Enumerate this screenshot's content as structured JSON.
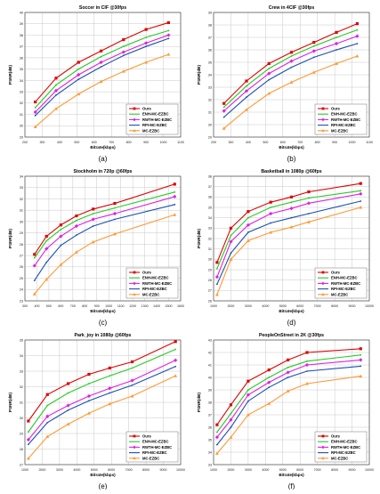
{
  "legend_labels": [
    "Ours",
    "ENH-MC-EZBC",
    "RWTH-MC-EZBC",
    "RPI-MC-EZBC",
    "MC-EZBC"
  ],
  "colors": {
    "Ours": "#e00000",
    "ENH-MC-EZBC": "#22cc22",
    "RWTH-MC-EZBC": "#e020e0",
    "RPI-MC-EZBC": "#1a4fb0",
    "MC-EZBC": "#ff9933"
  },
  "marker_shapes": [
    "square",
    "none",
    "diamond",
    "none",
    "triangle"
  ],
  "chart_data": [
    {
      "type": "line",
      "title": "Soccer in CIF @30fps",
      "caption": "(a)",
      "xlabel": "Bitrate(kbps)",
      "ylabel": "PSNR(dB)",
      "xlim": [
        200,
        1100
      ],
      "ylim": [
        29,
        40
      ],
      "xticks": [
        200,
        300,
        400,
        500,
        600,
        700,
        800,
        900,
        1000,
        1100
      ],
      "yticks": [
        29,
        30,
        31,
        32,
        33,
        34,
        35,
        36,
        37,
        38,
        39,
        40
      ],
      "grid": true,
      "legend_position": "bottom-right",
      "series": [
        {
          "name": "Ours",
          "x": [
            260,
            380,
            510,
            640,
            770,
            900,
            1030
          ],
          "y": [
            32.1,
            34.2,
            35.6,
            36.6,
            37.6,
            38.5,
            39.1
          ]
        },
        {
          "name": "ENH-MC-EZBC",
          "x": [
            260,
            380,
            510,
            640,
            770,
            900,
            1030
          ],
          "y": [
            31.6,
            33.6,
            35.0,
            36.1,
            37.0,
            37.8,
            38.4
          ]
        },
        {
          "name": "RWTH-MC-EZBC",
          "x": [
            260,
            380,
            510,
            640,
            770,
            900,
            1030
          ],
          "y": [
            31.2,
            33.1,
            34.5,
            35.6,
            36.5,
            37.3,
            38.0
          ]
        },
        {
          "name": "RPI-MC-EZBC",
          "x": [
            260,
            380,
            510,
            640,
            770,
            900,
            1030
          ],
          "y": [
            30.9,
            32.7,
            34.1,
            35.2,
            36.2,
            37.0,
            37.7
          ]
        },
        {
          "name": "MC-EZBC",
          "x": [
            260,
            380,
            510,
            640,
            770,
            900,
            1030
          ],
          "y": [
            29.9,
            31.5,
            32.8,
            33.9,
            34.8,
            35.6,
            36.3
          ]
        }
      ]
    },
    {
      "type": "line",
      "title": "Crew in 4CIF @30fps",
      "caption": "(b)",
      "xlabel": "Bitrate(kbps)",
      "ylabel": "PSNR(dB)",
      "xlim": [
        200,
        1100
      ],
      "ylim": [
        29,
        39
      ],
      "xticks": [
        200,
        300,
        400,
        500,
        600,
        700,
        800,
        900,
        1000,
        1100
      ],
      "yticks": [
        29,
        30,
        31,
        32,
        33,
        34,
        35,
        36,
        37,
        38,
        39
      ],
      "grid": true,
      "legend_position": "bottom-right",
      "series": [
        {
          "name": "Ours",
          "x": [
            260,
            390,
            520,
            650,
            780,
            910,
            1030
          ],
          "y": [
            31.7,
            33.5,
            34.9,
            35.8,
            36.6,
            37.4,
            38.1
          ]
        },
        {
          "name": "ENH-MC-EZBC",
          "x": [
            260,
            390,
            520,
            650,
            780,
            910,
            1030
          ],
          "y": [
            31.4,
            33.1,
            34.5,
            35.5,
            36.3,
            37.0,
            37.6
          ]
        },
        {
          "name": "RWTH-MC-EZBC",
          "x": [
            260,
            390,
            520,
            650,
            780,
            910,
            1030
          ],
          "y": [
            31.1,
            32.7,
            34.1,
            35.1,
            35.9,
            36.5,
            37.1
          ]
        },
        {
          "name": "RPI-MC-EZBC",
          "x": [
            260,
            390,
            520,
            650,
            780,
            910,
            1030
          ],
          "y": [
            30.6,
            32.2,
            33.6,
            34.6,
            35.4,
            36.0,
            36.5
          ]
        },
        {
          "name": "MC-EZBC",
          "x": [
            260,
            390,
            520,
            650,
            780,
            910,
            1030
          ],
          "y": [
            29.7,
            31.2,
            32.5,
            33.4,
            34.2,
            34.9,
            35.5
          ]
        }
      ]
    },
    {
      "type": "line",
      "title": "Stockholm in 720p @60fps",
      "caption": "(c)",
      "xlabel": "Bitrate(kbps)",
      "ylabel": "PSNR(dB)",
      "xlim": [
        300,
        1600
      ],
      "ylim": [
        23,
        34
      ],
      "xticks": [
        300,
        400,
        500,
        600,
        700,
        800,
        900,
        1000,
        1100,
        1200,
        1300,
        1400,
        1500,
        1600
      ],
      "yticks": [
        23,
        24,
        25,
        26,
        27,
        28,
        29,
        30,
        31,
        32,
        33,
        34
      ],
      "grid": true,
      "legend_position": "bottom-right",
      "series": [
        {
          "name": "Ours",
          "x": [
            380,
            480,
            600,
            730,
            870,
            1050,
            1550
          ],
          "y": [
            27.1,
            28.7,
            29.7,
            30.5,
            31.1,
            31.6,
            33.3
          ]
        },
        {
          "name": "ENH-MC-EZBC",
          "x": [
            380,
            480,
            600,
            730,
            870,
            1050,
            1550
          ],
          "y": [
            26.8,
            28.3,
            29.3,
            30.1,
            30.7,
            31.2,
            32.6
          ]
        },
        {
          "name": "RWTH-MC-EZBC",
          "x": [
            380,
            480,
            600,
            730,
            870,
            1050,
            1550
          ],
          "y": [
            26.1,
            27.6,
            28.7,
            29.6,
            30.2,
            30.7,
            32.2
          ]
        },
        {
          "name": "RPI-MC-EZBC",
          "x": [
            380,
            480,
            600,
            730,
            870,
            1050,
            1550
          ],
          "y": [
            24.8,
            26.4,
            27.9,
            28.8,
            29.6,
            30.2,
            31.5
          ]
        },
        {
          "name": "MC-EZBC",
          "x": [
            380,
            480,
            600,
            730,
            870,
            1050,
            1550
          ],
          "y": [
            23.6,
            24.9,
            26.2,
            27.3,
            28.2,
            28.9,
            30.6
          ]
        }
      ]
    },
    {
      "type": "line",
      "title": "Basketball in 1080p @60fps",
      "caption": "(d)",
      "xlabel": "Bitrate(kbps)",
      "ylabel": "PSNR(dB)",
      "xlim": [
        1000,
        10000
      ],
      "ylim": [
        26,
        38
      ],
      "xticks": [
        1000,
        2000,
        3000,
        4000,
        5000,
        6000,
        7000,
        8000,
        9000,
        10000
      ],
      "yticks": [
        26,
        27,
        28,
        29,
        30,
        31,
        32,
        33,
        34,
        35,
        36,
        37,
        38
      ],
      "grid": true,
      "legend_position": "bottom-right",
      "series": [
        {
          "name": "Ours",
          "x": [
            1200,
            2000,
            3000,
            4300,
            5500,
            6500,
            9500
          ],
          "y": [
            29.7,
            33.0,
            34.6,
            35.5,
            36.0,
            36.5,
            37.3
          ]
        },
        {
          "name": "ENH-MC-EZBC",
          "x": [
            1200,
            2000,
            3000,
            4300,
            5500,
            6500,
            9500
          ],
          "y": [
            29.1,
            32.3,
            34.0,
            35.0,
            35.5,
            35.9,
            36.6
          ]
        },
        {
          "name": "RWTH-MC-EZBC",
          "x": [
            1200,
            2000,
            3000,
            4300,
            5500,
            6500,
            9500
          ],
          "y": [
            28.3,
            31.7,
            33.3,
            34.4,
            34.9,
            35.4,
            36.3
          ]
        },
        {
          "name": "RPI-MC-EZBC",
          "x": [
            1200,
            2000,
            3000,
            4300,
            5500,
            6500,
            9500
          ],
          "y": [
            27.6,
            30.6,
            32.6,
            33.5,
            34.0,
            34.4,
            35.6
          ]
        },
        {
          "name": "MC-EZBC",
          "x": [
            1200,
            2000,
            3000,
            4300,
            5500,
            6500,
            9500
          ],
          "y": [
            26.6,
            30.0,
            31.8,
            32.6,
            33.1,
            33.6,
            35.0
          ]
        }
      ]
    },
    {
      "type": "line",
      "title": "Park_joy in 1080p @60fps",
      "caption": "(e)",
      "xlabel": "Bitrate(kbps)",
      "ylabel": "PSNR(dB)",
      "xlim": [
        1000,
        10000
      ],
      "ylim": [
        27,
        35
      ],
      "xticks": [
        1000,
        2000,
        3000,
        4000,
        5000,
        6000,
        7000,
        8000,
        9000,
        10000
      ],
      "yticks": [
        27,
        28,
        29,
        30,
        31,
        32,
        33,
        34,
        35
      ],
      "grid": true,
      "legend_position": "bottom-right",
      "series": [
        {
          "name": "Ours",
          "x": [
            1200,
            2300,
            3500,
            4700,
            5900,
            7200,
            9700
          ],
          "y": [
            29.8,
            31.5,
            32.2,
            32.8,
            33.2,
            33.6,
            34.9
          ]
        },
        {
          "name": "ENH-MC-EZBC",
          "x": [
            1200,
            2300,
            3500,
            4700,
            5900,
            7200,
            9700
          ],
          "y": [
            29.1,
            30.8,
            31.6,
            32.2,
            32.7,
            33.2,
            34.4
          ]
        },
        {
          "name": "RWTH-MC-EZBC",
          "x": [
            1200,
            2300,
            3500,
            4700,
            5900,
            7200,
            9700
          ],
          "y": [
            28.6,
            30.1,
            30.8,
            31.4,
            31.9,
            32.4,
            33.7
          ]
        },
        {
          "name": "RPI-MC-EZBC",
          "x": [
            1200,
            2300,
            3500,
            4700,
            5900,
            7200,
            9700
          ],
          "y": [
            28.3,
            29.7,
            30.5,
            31.1,
            31.6,
            32.1,
            33.3
          ]
        },
        {
          "name": "MC-EZBC",
          "x": [
            1200,
            2300,
            3500,
            4700,
            5900,
            7200,
            9700
          ],
          "y": [
            27.4,
            28.8,
            29.6,
            30.3,
            30.9,
            31.4,
            32.7
          ]
        }
      ]
    },
    {
      "type": "line",
      "title": "PeopleOnStreet in 2K @30fps",
      "caption": "(f)",
      "xlabel": "Bitrate(kbps)",
      "ylabel": "PSNR(dB)",
      "xlim": [
        1000,
        10000
      ],
      "ylim": [
        33,
        43
      ],
      "xticks": [
        1000,
        2000,
        3000,
        4000,
        5000,
        6000,
        7000,
        8000,
        9000,
        10000
      ],
      "yticks": [
        33,
        34,
        35,
        36,
        37,
        38,
        39,
        40,
        41,
        42,
        43
      ],
      "grid": true,
      "legend_position": "bottom-right",
      "series": [
        {
          "name": "Ours",
          "x": [
            1200,
            2000,
            3000,
            4200,
            5300,
            6400,
            9500
          ],
          "y": [
            36.2,
            37.8,
            39.7,
            40.6,
            41.4,
            42.0,
            42.3
          ]
        },
        {
          "name": "ENH-MC-EZBC",
          "x": [
            1200,
            2000,
            3000,
            4200,
            5300,
            6400,
            9500
          ],
          "y": [
            35.6,
            37.1,
            39.0,
            40.0,
            40.8,
            41.3,
            41.8
          ]
        },
        {
          "name": "RWTH-MC-EZBC",
          "x": [
            1200,
            2000,
            3000,
            4200,
            5300,
            6400,
            9500
          ],
          "y": [
            35.2,
            36.6,
            38.6,
            39.6,
            40.4,
            41.0,
            41.4
          ]
        },
        {
          "name": "RPI-MC-EZBC",
          "x": [
            1200,
            2000,
            3000,
            4200,
            5300,
            6400,
            9500
          ],
          "y": [
            34.6,
            36.0,
            38.1,
            39.2,
            40.0,
            40.5,
            40.9
          ]
        },
        {
          "name": "MC-EZBC",
          "x": [
            1200,
            2000,
            3000,
            4200,
            5300,
            6400,
            9500
          ],
          "y": [
            33.9,
            35.2,
            37.0,
            37.9,
            38.9,
            39.5,
            40.1
          ]
        }
      ]
    }
  ]
}
